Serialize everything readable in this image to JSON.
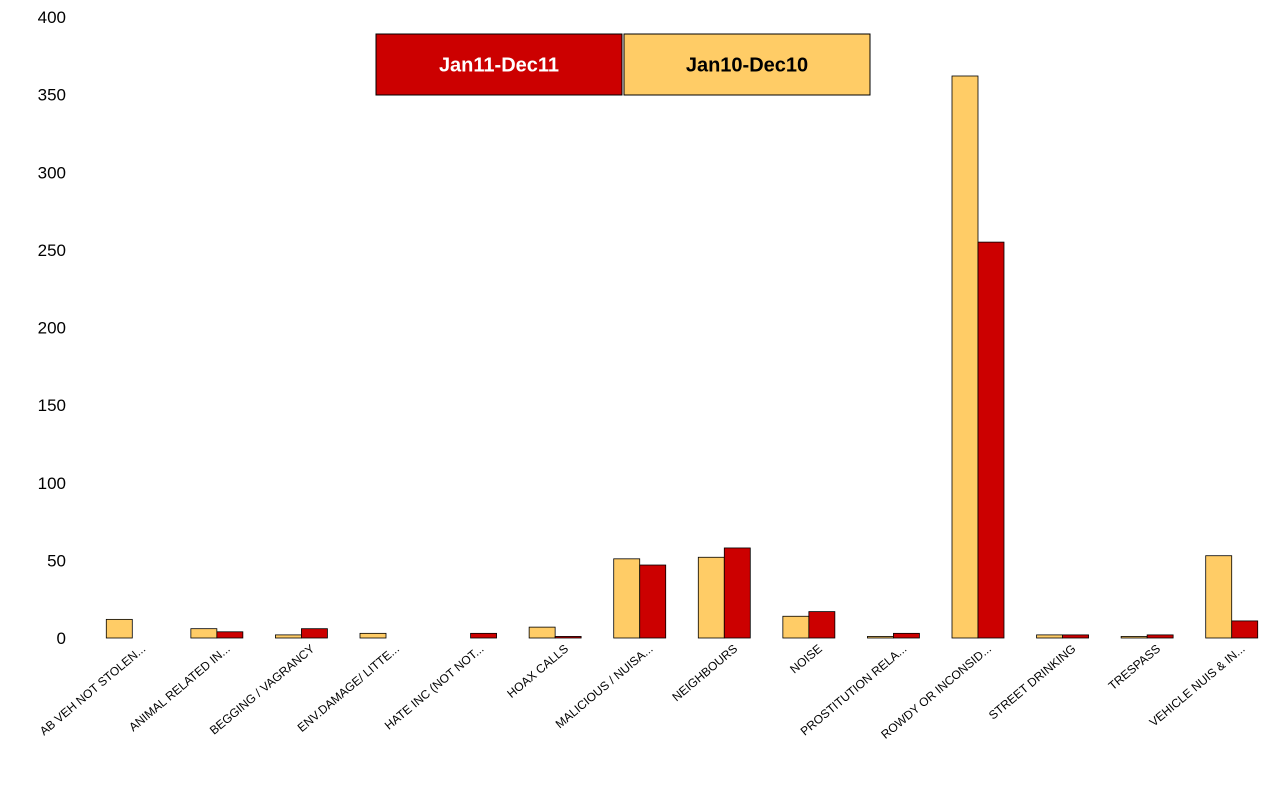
{
  "chart_data": {
    "type": "bar",
    "categories": [
      "AB VEH NOT STOLEN...",
      "ANIMAL RELATED IN...",
      "BEGGING / VAGRANCY",
      "ENV.DAMAGE/ LITTE...",
      "HATE INC (NOT NOT...",
      "HOAX CALLS",
      "MALICIOUS / NUISA...",
      "NEIGHBOURS",
      "NOISE",
      "PROSTITUTION RELA...",
      "ROWDY OR INCONSID...",
      "STREET DRINKING",
      "TRESPASS",
      "VEHICLE NUIS & IN..."
    ],
    "series": [
      {
        "name": "Jan10-Dec10",
        "color": "#FFCC66",
        "values": [
          12,
          6,
          2,
          3,
          0,
          7,
          51,
          52,
          14,
          1,
          362,
          2,
          1,
          53
        ]
      },
      {
        "name": "Jan11-Dec11",
        "color": "#CC0000",
        "values": [
          0,
          4,
          6,
          0,
          3,
          1,
          47,
          58,
          17,
          3,
          255,
          2,
          2,
          11
        ]
      }
    ],
    "ylim": [
      0,
      400
    ],
    "yticks": [
      0,
      50,
      100,
      150,
      200,
      250,
      300,
      350,
      400
    ],
    "grid": false,
    "legend": {
      "placement": "top-center",
      "entries": [
        {
          "label": "Jan11-Dec11",
          "color": "#CC0000",
          "text_color": "#ffffff"
        },
        {
          "label": "Jan10-Dec10",
          "color": "#FFCC66",
          "text_color": "#000000"
        }
      ]
    }
  }
}
